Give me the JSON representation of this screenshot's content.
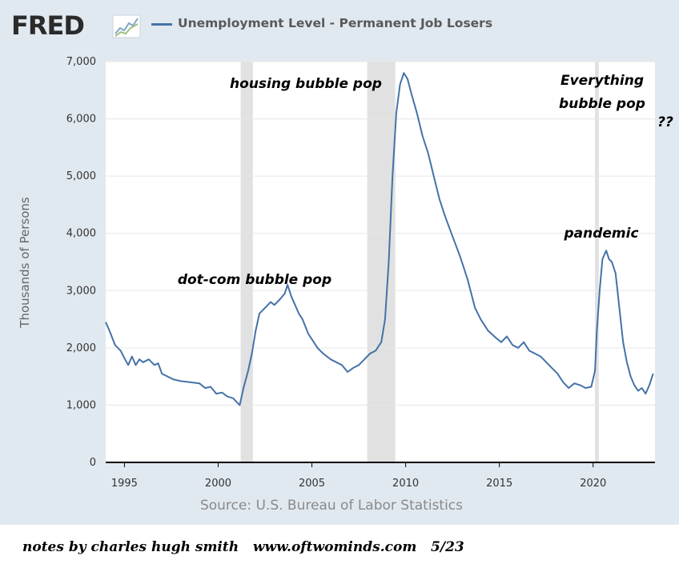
{
  "header": {
    "logo_text": "FRED",
    "logo_icon": "chart-line-icon",
    "legend_label": "Unemployment Level - Permanent Job Losers",
    "legend_color": "#4572a7"
  },
  "source_text": "Source: U.S. Bureau of Labor Statistics",
  "annotations": {
    "dotcom": "dot-com bubble pop",
    "housing": "housing bubble pop",
    "everything_line1": "Everything",
    "everything_line2": "bubble pop",
    "question": "??",
    "pandemic": "pandemic"
  },
  "footer_text": "notes by charles hugh smith   www.oftwominds.com   5/23",
  "chart_data": {
    "type": "line",
    "title": "Unemployment Level - Permanent Job Losers",
    "ylabel": "Thousands of Persons",
    "xlabel": "",
    "xlim": [
      1994.0,
      2023.3
    ],
    "ylim": [
      0,
      7000
    ],
    "x_ticks": [
      "1995",
      "2000",
      "2005",
      "2010",
      "2015",
      "2020"
    ],
    "y_ticks": [
      "0",
      "1,000",
      "2,000",
      "3,000",
      "4,000",
      "5,000",
      "6,000",
      "7,000"
    ],
    "recessions": [
      [
        2001.2,
        2001.85
      ],
      [
        2007.95,
        2009.45
      ],
      [
        2020.1,
        2020.3
      ]
    ],
    "series": [
      {
        "name": "Unemployment Level - Permanent Job Losers",
        "color": "#4572a7",
        "x": [
          1994.0,
          1994.2,
          1994.5,
          1994.8,
          1995.0,
          1995.2,
          1995.4,
          1995.6,
          1995.8,
          1996.0,
          1996.3,
          1996.6,
          1996.8,
          1997.0,
          1997.3,
          1997.6,
          1998.0,
          1998.5,
          1999.0,
          1999.3,
          1999.6,
          1999.9,
          2000.2,
          2000.5,
          2000.8,
          2001.0,
          2001.15,
          2001.35,
          2001.6,
          2001.8,
          2002.0,
          2002.2,
          2002.5,
          2002.8,
          2003.0,
          2003.3,
          2003.55,
          2003.7,
          2003.9,
          2004.1,
          2004.3,
          2004.5,
          2004.8,
          2005.0,
          2005.3,
          2005.6,
          2006.0,
          2006.3,
          2006.6,
          2006.9,
          2007.2,
          2007.5,
          2007.8,
          2008.1,
          2008.4,
          2008.7,
          2008.9,
          2009.1,
          2009.3,
          2009.5,
          2009.7,
          2009.9,
          2010.1,
          2010.3,
          2010.6,
          2010.9,
          2011.2,
          2011.5,
          2011.8,
          2012.1,
          2012.5,
          2012.9,
          2013.3,
          2013.7,
          2014.0,
          2014.4,
          2014.8,
          2015.1,
          2015.4,
          2015.7,
          2016.0,
          2016.3,
          2016.6,
          2016.9,
          2017.2,
          2017.5,
          2017.8,
          2018.1,
          2018.4,
          2018.7,
          2019.0,
          2019.3,
          2019.6,
          2019.9,
          2020.1,
          2020.2,
          2020.35,
          2020.5,
          2020.7,
          2020.85,
          2021.0,
          2021.2,
          2021.4,
          2021.6,
          2021.8,
          2022.0,
          2022.2,
          2022.4,
          2022.6,
          2022.8,
          2023.0,
          2023.2
        ],
        "y": [
          2450,
          2300,
          2050,
          1950,
          1820,
          1700,
          1850,
          1700,
          1800,
          1750,
          1800,
          1700,
          1730,
          1550,
          1500,
          1450,
          1420,
          1400,
          1380,
          1300,
          1320,
          1200,
          1220,
          1150,
          1120,
          1050,
          1000,
          1300,
          1600,
          1900,
          2300,
          2600,
          2700,
          2800,
          2750,
          2850,
          2950,
          3100,
          2900,
          2750,
          2600,
          2500,
          2250,
          2150,
          2000,
          1900,
          1800,
          1750,
          1700,
          1580,
          1650,
          1700,
          1800,
          1900,
          1950,
          2100,
          2500,
          3500,
          5000,
          6100,
          6600,
          6800,
          6700,
          6450,
          6100,
          5700,
          5400,
          5000,
          4600,
          4300,
          3950,
          3600,
          3200,
          2700,
          2500,
          2300,
          2180,
          2100,
          2200,
          2050,
          2000,
          2100,
          1950,
          1900,
          1850,
          1750,
          1650,
          1550,
          1400,
          1300,
          1380,
          1350,
          1300,
          1320,
          1600,
          2300,
          3000,
          3550,
          3700,
          3550,
          3500,
          3300,
          2700,
          2100,
          1750,
          1500,
          1350,
          1250,
          1300,
          1200,
          1350,
          1550
        ]
      }
    ]
  }
}
